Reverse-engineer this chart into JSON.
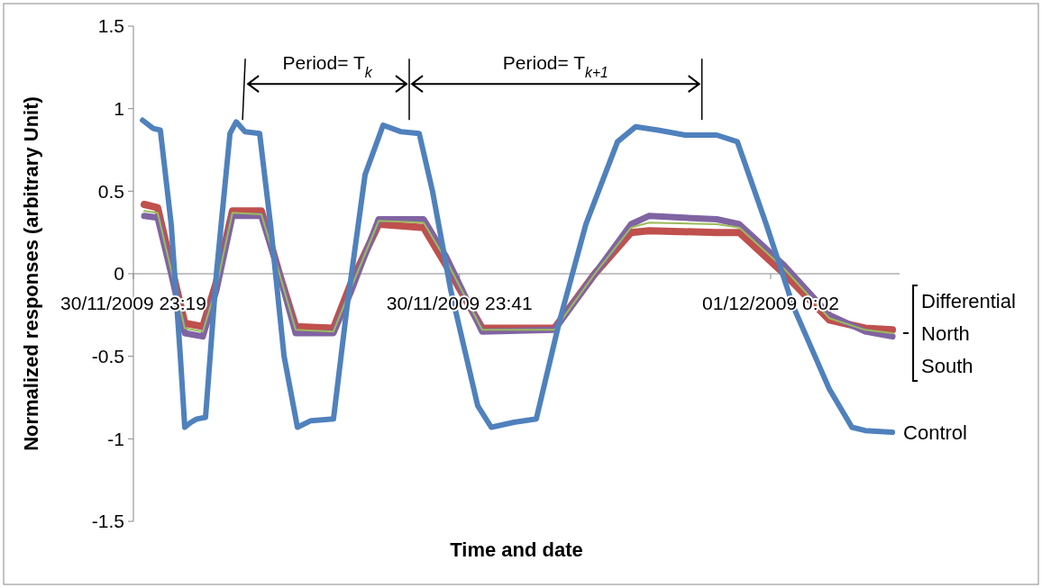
{
  "chart_data": {
    "type": "line",
    "xlabel": "Time and date",
    "ylabel": "Normalized responses (arbitrary Unit)",
    "xlim": [
      "2009-11-30T23:19:00",
      "2009-12-01T00:10:42"
    ],
    "ylim": [
      -1.5,
      1.5
    ],
    "yticks": [
      -1.5,
      -1,
      -0.5,
      0,
      0.5,
      1,
      1.5
    ],
    "xticks": [
      {
        "value": "2009-11-30T23:19",
        "label": "30/11/2009 23:19"
      },
      {
        "value": "2009-11-30T23:41",
        "label": "30/11/2009 23:41"
      },
      {
        "value": "2009-12-01T00:02",
        "label": "01/12/2009 0:02"
      }
    ],
    "annotations": [
      "Period= T$_{k}$",
      "Period= T$_{k+1}$"
    ],
    "legend": false,
    "grid": false,
    "marker": "none",
    "line_style": "solid",
    "series": [
      {
        "name": "North",
        "color": "#c0504d",
        "x": [
          "2009-11-30T23:19:44",
          "2009-11-30T23:20:38",
          "2009-11-30T23:21:33",
          "2009-11-30T23:22:28",
          "2009-11-30T23:23:41",
          "2009-11-30T23:24:36",
          "2009-11-30T23:25:41",
          "2009-11-30T23:27:38",
          "2009-11-30T23:28:51",
          "2009-11-30T23:29:57",
          "2009-11-30T23:32:30",
          "2009-11-30T23:33:43",
          "2009-11-30T23:35:33",
          "2009-11-30T23:38:35",
          "2009-11-30T23:40:07",
          "2009-11-30T23:42:32",
          "2009-11-30T23:47:25",
          "2009-11-30T23:50:08",
          "2009-11-30T23:52:35",
          "2009-11-30T23:53:47",
          "2009-11-30T23:58:22",
          "2009-11-30T23:59:53",
          "2009-12-01T00:02:55",
          "2009-12-01T00:05:58",
          "2009-12-01T00:08:23",
          "2009-12-01T00:10:13"
        ],
        "values": [
          0.42,
          0.4,
          0.05,
          -0.3,
          -0.32,
          -0.05,
          0.38,
          0.38,
          0.0,
          -0.32,
          -0.33,
          -0.05,
          0.3,
          0.28,
          0.05,
          -0.33,
          -0.33,
          0.0,
          0.25,
          0.26,
          0.25,
          0.25,
          0.0,
          -0.28,
          -0.33,
          -0.34
        ]
      },
      {
        "name": "South",
        "color": "#8064a2",
        "x": [
          "2009-11-30T23:19:44",
          "2009-11-30T23:20:38",
          "2009-11-30T23:21:33",
          "2009-11-30T23:22:28",
          "2009-11-30T23:23:41",
          "2009-11-30T23:24:36",
          "2009-11-30T23:25:41",
          "2009-11-30T23:27:38",
          "2009-11-30T23:28:51",
          "2009-11-30T23:29:57",
          "2009-11-30T23:32:30",
          "2009-11-30T23:33:43",
          "2009-11-30T23:35:33",
          "2009-11-30T23:38:35",
          "2009-11-30T23:40:07",
          "2009-11-30T23:42:32",
          "2009-11-30T23:47:25",
          "2009-11-30T23:50:08",
          "2009-11-30T23:52:35",
          "2009-11-30T23:53:47",
          "2009-11-30T23:58:22",
          "2009-11-30T23:59:53",
          "2009-12-01T00:02:55",
          "2009-12-01T00:05:58",
          "2009-12-01T00:08:23",
          "2009-12-01T00:10:13"
        ],
        "values": [
          0.35,
          0.34,
          0.0,
          -0.36,
          -0.38,
          -0.1,
          0.35,
          0.35,
          0.0,
          -0.36,
          -0.36,
          -0.1,
          0.33,
          0.33,
          0.1,
          -0.35,
          -0.34,
          0.0,
          0.3,
          0.35,
          0.33,
          0.3,
          0.05,
          -0.25,
          -0.35,
          -0.38
        ]
      },
      {
        "name": "Differential",
        "color": "#9bbb59",
        "x": [
          "2009-11-30T23:19:44",
          "2009-11-30T23:20:38",
          "2009-11-30T23:21:33",
          "2009-11-30T23:22:28",
          "2009-11-30T23:23:41",
          "2009-11-30T23:24:36",
          "2009-11-30T23:25:41",
          "2009-11-30T23:27:38",
          "2009-11-30T23:28:51",
          "2009-11-30T23:29:57",
          "2009-11-30T23:32:30",
          "2009-11-30T23:33:43",
          "2009-11-30T23:35:33",
          "2009-11-30T23:38:35",
          "2009-11-30T23:40:07",
          "2009-11-30T23:42:32",
          "2009-11-30T23:47:25",
          "2009-11-30T23:50:08",
          "2009-11-30T23:52:35",
          "2009-11-30T23:53:47",
          "2009-11-30T23:58:22",
          "2009-11-30T23:59:53",
          "2009-12-01T00:02:55",
          "2009-12-01T00:05:58",
          "2009-12-01T00:08:23",
          "2009-12-01T00:10:13"
        ],
        "values": [
          0.38,
          0.37,
          0.02,
          -0.33,
          -0.35,
          -0.08,
          0.37,
          0.36,
          0.0,
          -0.34,
          -0.35,
          -0.08,
          0.32,
          0.31,
          0.08,
          -0.34,
          -0.34,
          0.0,
          0.28,
          0.31,
          0.3,
          0.28,
          0.03,
          -0.27,
          -0.34,
          -0.36
        ]
      },
      {
        "name": "Control",
        "color": "#4f81bd",
        "x": [
          "2009-11-30T23:19:37",
          "2009-11-30T23:20:20",
          "2009-11-30T23:20:49",
          "2009-11-30T23:21:33",
          "2009-11-30T23:22:10",
          "2009-11-30T23:22:28",
          "2009-11-30T23:22:53",
          "2009-11-30T23:23:16",
          "2009-11-30T23:23:52",
          "2009-11-30T23:24:36",
          "2009-11-30T23:25:31",
          "2009-11-30T23:25:56",
          "2009-11-30T23:26:32",
          "2009-11-30T23:27:31",
          "2009-11-30T23:28:15",
          "2009-11-30T23:29:10",
          "2009-11-30T23:30:04",
          "2009-11-30T23:30:59",
          "2009-11-30T23:32:30",
          "2009-11-30T23:33:25",
          "2009-11-30T23:34:38",
          "2009-11-30T23:35:51",
          "2009-11-30T23:37:04",
          "2009-11-30T23:38:17",
          "2009-11-30T23:39:11",
          "2009-11-30T23:40:25",
          "2009-11-30T23:42:14",
          "2009-11-30T23:43:09",
          "2009-11-30T23:44:40",
          "2009-11-30T23:46:11",
          "2009-11-30T23:47:43",
          "2009-11-30T23:49:32",
          "2009-11-30T23:51:40",
          "2009-11-30T23:52:53",
          "2009-11-30T23:54:24",
          "2009-11-30T23:56:14",
          "2009-11-30T23:58:22",
          "2009-11-30T23:59:45",
          "2009-12-01T00:01:42",
          "2009-12-01T00:03:32",
          "2009-12-01T00:05:58",
          "2009-12-01T00:07:29",
          "2009-12-01T00:08:23",
          "2009-12-01T00:10:13"
        ],
        "values": [
          0.93,
          0.88,
          0.87,
          0.3,
          -0.5,
          -0.93,
          -0.9,
          -0.88,
          -0.87,
          0.0,
          0.85,
          0.92,
          0.86,
          0.85,
          0.3,
          -0.5,
          -0.93,
          -0.89,
          -0.88,
          -0.2,
          0.6,
          0.9,
          0.86,
          0.85,
          0.5,
          -0.1,
          -0.8,
          -0.93,
          -0.9,
          -0.88,
          -0.3,
          0.3,
          0.8,
          0.89,
          0.87,
          0.84,
          0.84,
          0.8,
          0.3,
          -0.2,
          -0.7,
          -0.93,
          -0.95,
          -0.96
        ]
      }
    ]
  }
}
